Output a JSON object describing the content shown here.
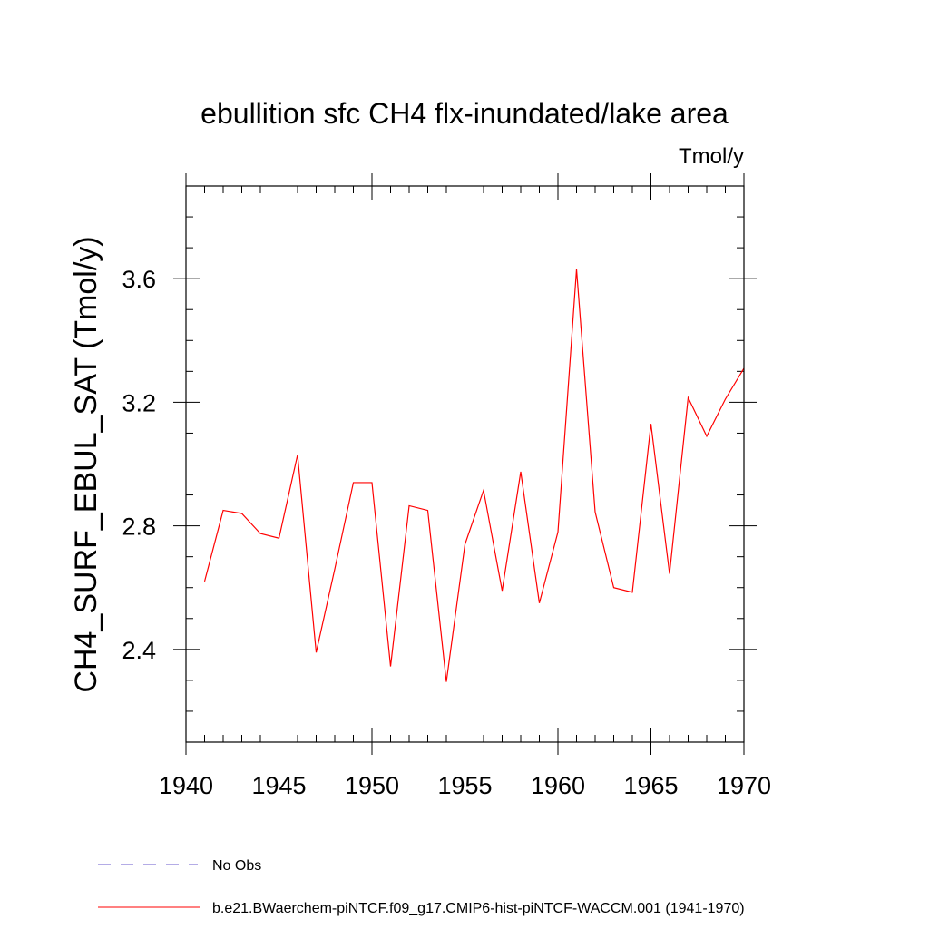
{
  "chart_data": {
    "type": "line",
    "title": "ebullition sfc CH4 flx-inundated/lake area",
    "units": "Tmol/y",
    "xlabel": "",
    "ylabel": "CH4_SURF_EBUL_SAT  (Tmol/y)",
    "xlim": [
      1940,
      1970
    ],
    "ylim": [
      2.1,
      3.9
    ],
    "x_ticks": [
      1940,
      1945,
      1950,
      1955,
      1960,
      1965,
      1970
    ],
    "x_tick_labels": [
      "1940",
      "1945",
      "1950",
      "1955",
      "1960",
      "1965",
      "1970"
    ],
    "y_ticks": [
      2.4,
      2.8,
      3.2,
      3.6
    ],
    "y_tick_labels": [
      "2.4",
      "2.8",
      "3.2",
      "3.6"
    ],
    "x_minor_step": 1,
    "y_minor_step": 0.1,
    "grid": false,
    "series": [
      {
        "name": "b.e21.BWaerchem-piNTCF.f09_g17.CMIP6-hist-piNTCF-WACCM.001 (1941-1970)",
        "color": "#ff0000",
        "x": [
          1941,
          1942,
          1943,
          1944,
          1945,
          1946,
          1947,
          1948,
          1949,
          1950,
          1951,
          1952,
          1953,
          1954,
          1955,
          1956,
          1957,
          1958,
          1959,
          1960,
          1961,
          1962,
          1963,
          1964,
          1965,
          1966,
          1967,
          1968,
          1969,
          1970
        ],
        "values": [
          2.62,
          2.85,
          2.84,
          2.775,
          2.76,
          3.03,
          2.39,
          2.66,
          2.94,
          2.94,
          2.345,
          2.865,
          2.85,
          2.295,
          2.74,
          2.915,
          2.59,
          2.975,
          2.55,
          2.78,
          3.63,
          2.845,
          2.6,
          2.585,
          3.13,
          2.645,
          3.215,
          3.09,
          3.21,
          3.31
        ]
      }
    ],
    "legend": [
      {
        "label": "No Obs",
        "color": "#6a5acd",
        "style": "dashed"
      },
      {
        "label": "b.e21.BWaerchem-piNTCF.f09_g17.CMIP6-hist-piNTCF-WACCM.001 (1941-1970)",
        "color": "#ff0000",
        "style": "solid"
      }
    ],
    "legend_position": "bottom-left"
  }
}
